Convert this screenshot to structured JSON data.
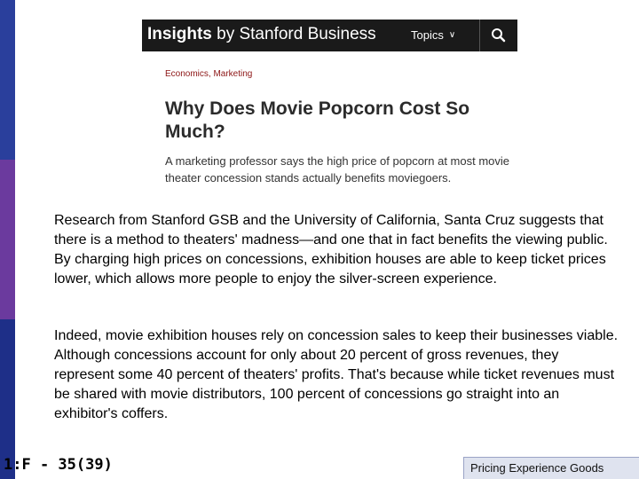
{
  "colors": {
    "side_top": "#2a3f9c",
    "side_mid": "#6b3a9e",
    "side_bottom": "#1e2f88",
    "header_bg": "#1a1a1a",
    "category": "#8c1515",
    "footer_bg": "#dfe3ef"
  },
  "article": {
    "brand_bold": "Insights",
    "brand_rest": " by Stanford Business",
    "topics_label": "Topics",
    "topics_icon": "chevron-down-icon",
    "search_icon": "search-icon",
    "categories": "Economics, Marketing",
    "headline": "Why Does Movie Popcorn Cost So Much?",
    "dek": "A marketing professor says the high price of popcorn at most movie theater concession stands actually benefits moviegoers."
  },
  "body": {
    "paragraph1": "Research from Stanford GSB and the University of California, Santa Cruz suggests that there is a method to theaters' madness—and one that in fact benefits the viewing public. By charging high prices on concessions, exhibition houses are able to keep ticket prices lower, which allows more people to enjoy the silver-screen experience.",
    "paragraph2": "Indeed, movie exhibition houses rely on concession sales to keep their businesses viable. Although concessions account for only about 20 percent of gross revenues, they represent some 40 percent of theaters' profits. That's because while ticket revenues must be shared with movie distributors, 100 percent of concessions go straight into an exhibitor's coffers."
  },
  "footer": {
    "slide_id": "1:F - 35(39)",
    "section_label": "Pricing Experience Goods"
  }
}
